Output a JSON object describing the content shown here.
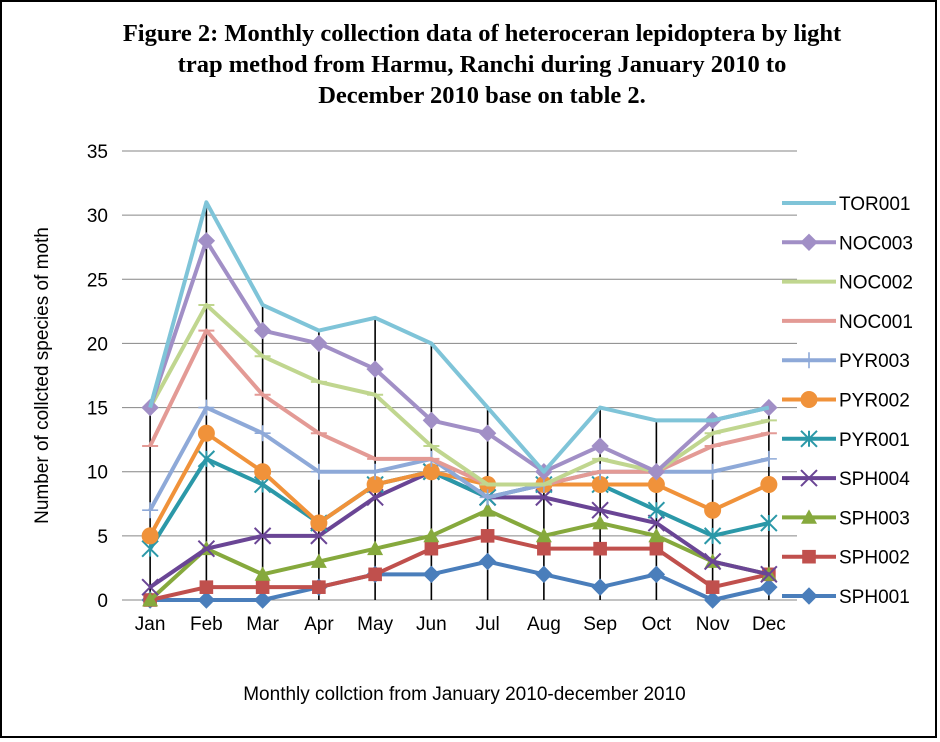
{
  "chart_data": {
    "type": "line",
    "title": "Figure 2: Monthly collection data of heteroceran lepidoptera by light trap method from Harmu, Ranchi during January 2010 to December 2010 base on table 2.",
    "xlabel": "Monthly collction from January 2010-december 2010",
    "ylabel": "Number of collcted species of moth",
    "ylim": [
      0,
      35
    ],
    "yticks": [
      0,
      5,
      10,
      15,
      20,
      25,
      30,
      35
    ],
    "grid": "horizontal",
    "legend_position": "right",
    "drop_lines": true,
    "categories": [
      "Jan",
      "Feb",
      "Mar",
      "Apr",
      "May",
      "Jun",
      "Jul",
      "Aug",
      "Sep",
      "Oct",
      "Nov",
      "Dec"
    ],
    "series": [
      {
        "name": "TOR001",
        "color": "#7fc4d8",
        "marker": "none",
        "values": [
          15,
          31,
          23,
          21,
          22,
          20,
          15,
          10,
          15,
          14,
          14,
          15
        ]
      },
      {
        "name": "NOC003",
        "color": "#a18fc6",
        "marker": "diamond",
        "values": [
          15,
          28,
          21,
          20,
          18,
          14,
          13,
          10,
          12,
          10,
          14,
          15
        ]
      },
      {
        "name": "NOC002",
        "color": "#c0d68f",
        "marker": "dash",
        "values": [
          15,
          23,
          19,
          17,
          16,
          12,
          9,
          9,
          11,
          10,
          13,
          14
        ]
      },
      {
        "name": "NOC001",
        "color": "#e39a95",
        "marker": "dash",
        "values": [
          12,
          21,
          16,
          13,
          11,
          11,
          9,
          9,
          10,
          10,
          12,
          13
        ]
      },
      {
        "name": "PYR003",
        "color": "#8ea9d8",
        "marker": "plus",
        "values": [
          7,
          15,
          13,
          10,
          10,
          11,
          8,
          9,
          10,
          10,
          10,
          11
        ]
      },
      {
        "name": "PYR002",
        "color": "#f0923a",
        "marker": "circle",
        "values": [
          5,
          13,
          10,
          6,
          9,
          10,
          9,
          9,
          9,
          9,
          7,
          9
        ]
      },
      {
        "name": "PYR001",
        "color": "#2b98a8",
        "marker": "star",
        "values": [
          4,
          11,
          9,
          6,
          9,
          10,
          8,
          9,
          9,
          7,
          5,
          6
        ]
      },
      {
        "name": "SPH004",
        "color": "#6a4595",
        "marker": "x",
        "values": [
          1,
          4,
          5,
          5,
          8,
          10,
          8,
          8,
          7,
          6,
          3,
          2
        ]
      },
      {
        "name": "SPH003",
        "color": "#86a93d",
        "marker": "triangle",
        "values": [
          0,
          4,
          2,
          3,
          4,
          5,
          7,
          5,
          6,
          5,
          3,
          2
        ]
      },
      {
        "name": "SPH002",
        "color": "#c0504d",
        "marker": "square",
        "values": [
          0,
          1,
          1,
          1,
          2,
          4,
          5,
          4,
          4,
          4,
          1,
          2
        ]
      },
      {
        "name": "SPH001",
        "color": "#4a7ebb",
        "marker": "diamond",
        "values": [
          0,
          0,
          0,
          1,
          2,
          2,
          3,
          2,
          1,
          2,
          0,
          1
        ]
      }
    ]
  }
}
